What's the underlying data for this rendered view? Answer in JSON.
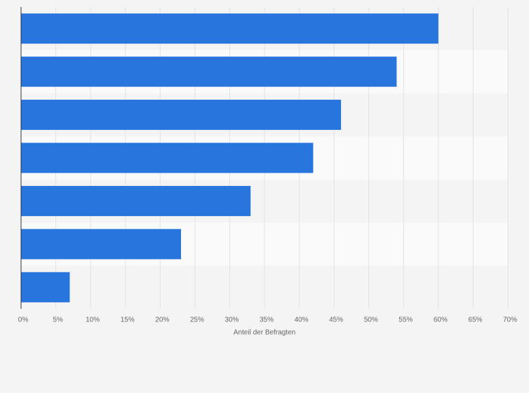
{
  "chart_data": {
    "type": "barh",
    "categories": [
      null,
      null,
      null,
      null,
      null,
      null,
      null
    ],
    "values": [
      60,
      54,
      46,
      42,
      33,
      23,
      7
    ],
    "color": "#2876dd",
    "xlabel": "Anteil der Befragten",
    "xlim": [
      0,
      70
    ],
    "xticks": [
      {
        "value": 0,
        "label": "0%"
      },
      {
        "value": 5,
        "label": "5%"
      },
      {
        "value": 10,
        "label": "10%"
      },
      {
        "value": 15,
        "label": "15%"
      },
      {
        "value": 20,
        "label": "20%"
      },
      {
        "value": 25,
        "label": "25%"
      },
      {
        "value": 30,
        "label": "30%"
      },
      {
        "value": 35,
        "label": "35%"
      },
      {
        "value": 40,
        "label": "40%"
      },
      {
        "value": 45,
        "label": "45%"
      },
      {
        "value": 50,
        "label": "50%"
      },
      {
        "value": 55,
        "label": "55%"
      },
      {
        "value": 60,
        "label": "60%"
      },
      {
        "value": 65,
        "label": "65%"
      },
      {
        "value": 70,
        "label": "70%"
      }
    ],
    "grid": true
  }
}
